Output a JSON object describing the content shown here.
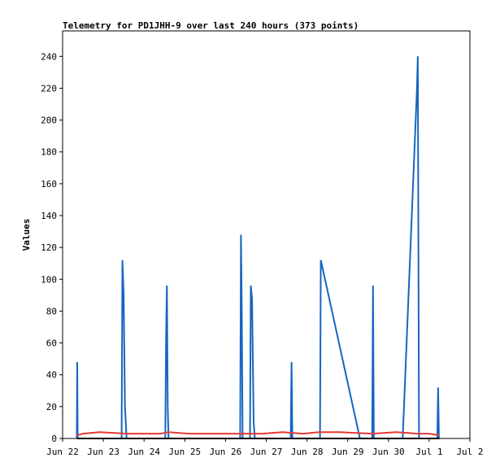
{
  "chart_data": {
    "type": "line",
    "title": "Telemetry for PD1JHH-9 over last 240 hours (373 points)",
    "ylabel": "Values",
    "xlabel": "",
    "ylim": [
      0,
      256
    ],
    "xlim": [
      0,
      10
    ],
    "x_ticks": [
      {
        "value": 0,
        "label": "Jun 22"
      },
      {
        "value": 1,
        "label": "Jun 23"
      },
      {
        "value": 2,
        "label": "Jun 24"
      },
      {
        "value": 3,
        "label": "Jun 25"
      },
      {
        "value": 4,
        "label": "Jun 26"
      },
      {
        "value": 5,
        "label": "Jun 27"
      },
      {
        "value": 6,
        "label": "Jun 28"
      },
      {
        "value": 7,
        "label": "Jun 29"
      },
      {
        "value": 8,
        "label": "Jun 30"
      },
      {
        "value": 9,
        "label": "Jul 1"
      },
      {
        "value": 10,
        "label": "Jul 2"
      }
    ],
    "y_ticks": [
      0,
      20,
      40,
      60,
      80,
      100,
      120,
      140,
      160,
      180,
      200,
      220,
      240
    ],
    "grid": false,
    "series": [
      {
        "color": "#1565c0",
        "points": [
          [
            0.35,
            0
          ],
          [
            0.36,
            48
          ],
          [
            0.37,
            0
          ],
          [
            1.45,
            0
          ],
          [
            1.47,
            112
          ],
          [
            1.5,
            90
          ],
          [
            1.53,
            20
          ],
          [
            1.57,
            0
          ],
          [
            2.52,
            0
          ],
          [
            2.54,
            64
          ],
          [
            2.56,
            96
          ],
          [
            2.58,
            20
          ],
          [
            2.6,
            0
          ],
          [
            4.36,
            0
          ],
          [
            4.38,
            128
          ],
          [
            4.4,
            80
          ],
          [
            4.42,
            0
          ],
          [
            4.6,
            0
          ],
          [
            4.62,
            96
          ],
          [
            4.65,
            88
          ],
          [
            4.69,
            10
          ],
          [
            4.72,
            0
          ],
          [
            5.6,
            0
          ],
          [
            5.62,
            48
          ],
          [
            5.64,
            0
          ],
          [
            6.32,
            0
          ],
          [
            6.34,
            112
          ],
          [
            7.3,
            0
          ],
          [
            7.6,
            0
          ],
          [
            7.62,
            96
          ],
          [
            7.64,
            0
          ],
          [
            8.35,
            0
          ],
          [
            8.7,
            220
          ],
          [
            8.72,
            240
          ],
          [
            8.75,
            0
          ],
          [
            9.2,
            0
          ],
          [
            9.22,
            32
          ],
          [
            9.24,
            0
          ]
        ]
      },
      {
        "color": "#e53935",
        "points": [
          [
            0.35,
            2
          ],
          [
            0.5,
            3
          ],
          [
            0.9,
            4
          ],
          [
            1.6,
            3
          ],
          [
            2.4,
            3
          ],
          [
            2.6,
            4
          ],
          [
            3.1,
            3
          ],
          [
            3.6,
            3
          ],
          [
            4.2,
            3
          ],
          [
            4.5,
            3
          ],
          [
            4.9,
            3
          ],
          [
            5.4,
            4
          ],
          [
            5.9,
            3
          ],
          [
            6.3,
            4
          ],
          [
            6.8,
            4
          ],
          [
            7.6,
            3
          ],
          [
            8.2,
            4
          ],
          [
            8.7,
            3
          ],
          [
            9.0,
            3
          ],
          [
            9.25,
            2
          ]
        ]
      },
      {
        "color": "#000000",
        "points": [
          [
            0.35,
            0
          ],
          [
            9.25,
            0
          ]
        ]
      }
    ]
  }
}
